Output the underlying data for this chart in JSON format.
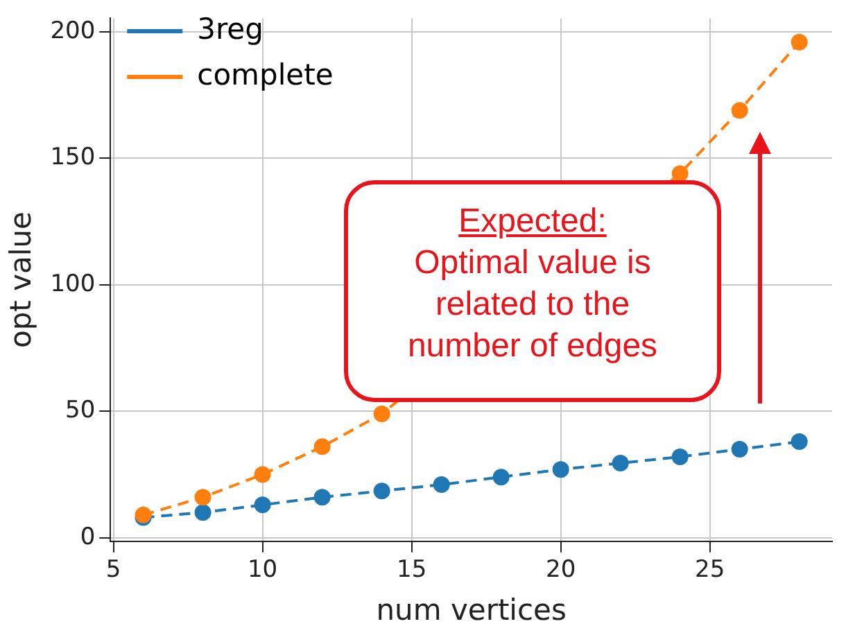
{
  "chart_data": {
    "type": "line",
    "xlabel": "num vertices",
    "ylabel": "opt value",
    "x": [
      6,
      8,
      10,
      12,
      14,
      16,
      18,
      20,
      22,
      24,
      26,
      28
    ],
    "series": [
      {
        "name": "3reg",
        "color": "#1f77b4",
        "values": [
          8,
          10,
          13,
          16,
          18.5,
          21,
          24,
          27,
          29.5,
          32,
          35,
          38
        ]
      },
      {
        "name": "complete",
        "color": "#ff7f0e",
        "values": [
          9,
          16,
          25,
          36,
          49,
          null,
          null,
          null,
          null,
          144,
          169,
          196
        ]
      }
    ],
    "xlim": [
      4.9,
      29.1
    ],
    "ylim": [
      -1.4,
      205.4
    ],
    "xticks": [
      5,
      10,
      15,
      20,
      25
    ],
    "yticks": [
      0,
      50,
      100,
      150,
      200
    ],
    "grid": true,
    "legend": "top left",
    "marker": "circle",
    "line_style": "dashed",
    "annotations": [
      "Expected:",
      "Optimal value is related to the number of edges"
    ]
  }
}
